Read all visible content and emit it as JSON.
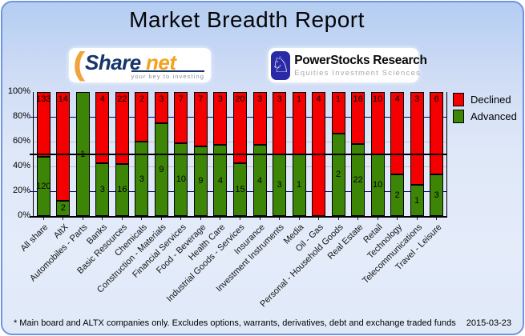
{
  "header": {
    "title": "Market Breadth Report"
  },
  "logos": {
    "sharenet": {
      "word_part1": "Share",
      "word_part2": "net",
      "tagline": "your key to investing",
      "accent_color": "#f2a31d",
      "word_color": "#16356b"
    },
    "powerstocks": {
      "title": "PowerStocks Research",
      "subtitle": "Equities Investment Sciences",
      "icon": "knight-chess-icon",
      "icon_glyph": "♘",
      "box_color": "#2a2aa6"
    }
  },
  "chart_data": {
    "type": "bar",
    "stacked": true,
    "title": "Market Breadth Report",
    "categories": [
      "All share",
      "AltX",
      "Automobiles - Parts",
      "Banks",
      "Basic Resources",
      "Chemicals",
      "Construction - Materials",
      "Financial Services",
      "Food - Beverage",
      "Health Care",
      "Industrial Goods - Services",
      "Insurance",
      "Investment Instruments",
      "Media",
      "Oil - Gas",
      "Personal - Household Goods",
      "Real Estate",
      "Retail",
      "Technology",
      "Telecommunications",
      "Travel - Leisure"
    ],
    "series": [
      {
        "name": "Declined",
        "color": "#f40000",
        "values": [
          133,
          14,
          0,
          4,
          22,
          2,
          3,
          7,
          7,
          3,
          20,
          3,
          3,
          1,
          4,
          1,
          16,
          10,
          4,
          3,
          6
        ]
      },
      {
        "name": "Advanced",
        "color": "#3d8506",
        "values": [
          120,
          2,
          1,
          3,
          16,
          3,
          9,
          10,
          9,
          4,
          15,
          4,
          3,
          1,
          0,
          2,
          22,
          10,
          2,
          1,
          3
        ]
      }
    ],
    "value_axis": "percent_share_of_total",
    "ylim": [
      0,
      100
    ],
    "y_ticks": [
      "100%",
      "80%",
      "60%",
      "40%",
      "20%",
      "0%"
    ],
    "gridlines": [
      {
        "pct": 80,
        "color": "#000080",
        "tick_left": true
      },
      {
        "pct": 60,
        "color": "#c3c3c3",
        "tick_left": false
      },
      {
        "pct": 40,
        "color": "#c3c3c3",
        "tick_left": false
      },
      {
        "pct": 20,
        "color": "#000080",
        "tick_left": true
      }
    ],
    "reference_line_pct": 50,
    "legend": {
      "position": "top-right",
      "entries": [
        "Declined",
        "Advanced"
      ]
    }
  },
  "footer": {
    "note": "* Main board and ALTX companies only. Excludes options, warrants, derivatives, debt and exchange traded funds",
    "date": "2015-03-23"
  }
}
